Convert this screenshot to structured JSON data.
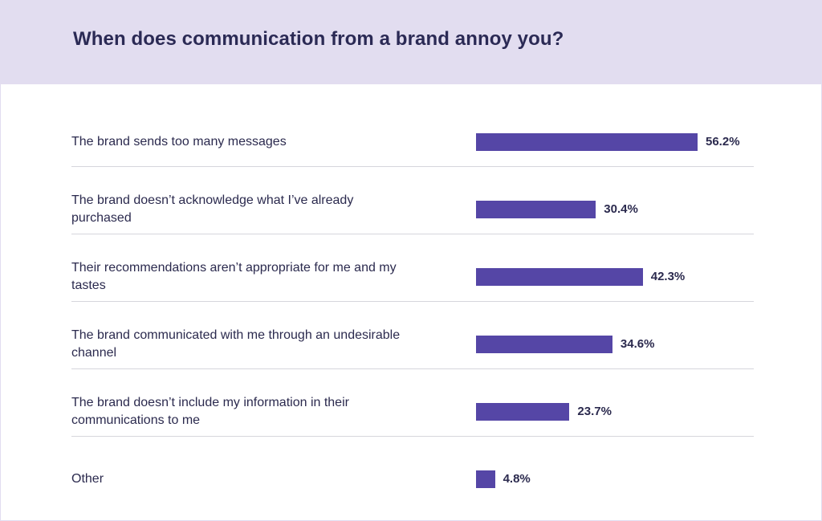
{
  "chart_data": {
    "type": "bar",
    "orientation": "horizontal",
    "title": "When does communication from a brand annoy you?",
    "categories": [
      "The brand sends too many messages",
      "The brand doesn’t acknowledge what I’ve already purchased",
      "Their recommendations aren’t appropriate for me and my tastes",
      "The brand communicated with me through an undesirable channel",
      "The brand doesn’t include my information in their communications to me",
      "Other"
    ],
    "values": [
      56.2,
      30.4,
      42.3,
      34.6,
      23.7,
      4.8
    ],
    "value_labels": [
      "56.2%",
      "30.4%",
      "42.3%",
      "34.6%",
      "23.7%",
      "4.8%"
    ],
    "unit": "%",
    "xlim": [
      0,
      60
    ],
    "grid": false,
    "legend": "none",
    "colors": {
      "bar": "#5546a6",
      "header": "#e2ddf0",
      "title": "#2b2a55"
    }
  }
}
